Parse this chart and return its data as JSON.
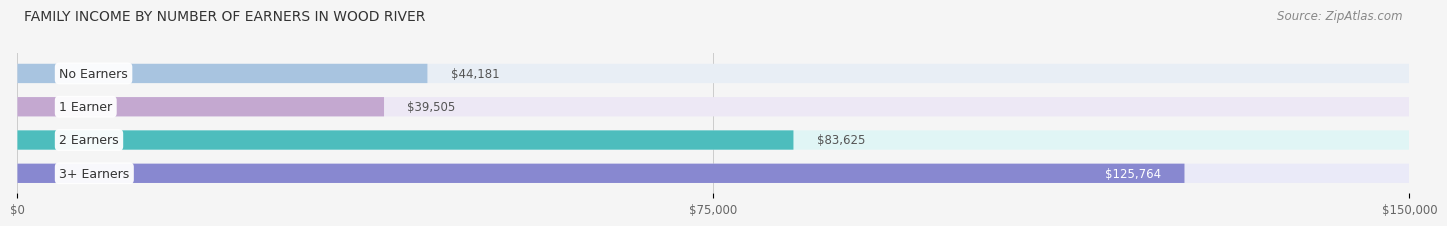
{
  "title": "FAMILY INCOME BY NUMBER OF EARNERS IN WOOD RIVER",
  "source": "Source: ZipAtlas.com",
  "categories": [
    "No Earners",
    "1 Earner",
    "2 Earners",
    "3+ Earners"
  ],
  "values": [
    44181,
    39505,
    83625,
    125764
  ],
  "value_labels": [
    "$44,181",
    "$39,505",
    "$83,625",
    "$125,764"
  ],
  "bar_colors": [
    "#a8c4e0",
    "#c4a8d0",
    "#4dbdbd",
    "#8888d0"
  ],
  "bar_bg_colors": [
    "#e8eef5",
    "#ede8f5",
    "#e0f5f5",
    "#eaeaf8"
  ],
  "xlim": [
    0,
    150000
  ],
  "xticklabels": [
    "$0",
    "$75,000",
    "$150,000"
  ],
  "title_fontsize": 10,
  "source_fontsize": 8.5,
  "label_fontsize": 9,
  "value_fontsize": 8.5,
  "background_color": "#f5f5f5",
  "bar_height": 0.58
}
